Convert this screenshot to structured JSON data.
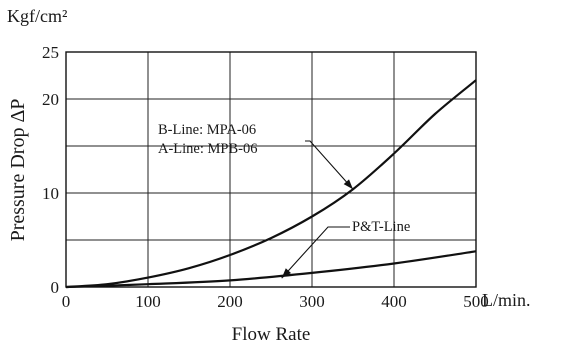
{
  "chart_data": {
    "type": "line",
    "title": "",
    "xlabel": "Flow Rate",
    "x_unit": "L/min.",
    "ylabel": "Pressure Drop  ΔP",
    "y_unit": "Kgf/cm²",
    "xlim": [
      0,
      500
    ],
    "ylim": [
      0,
      25
    ],
    "x_ticks": [
      0,
      100,
      200,
      300,
      400,
      500
    ],
    "y_ticks": [
      0,
      10,
      20,
      25
    ],
    "y_gridlines": [
      5,
      10,
      15,
      20
    ],
    "grid": true,
    "series": [
      {
        "name": "B-Line: MPA-06 / A-Line: MPB-06",
        "x": [
          0,
          50,
          100,
          150,
          200,
          250,
          300,
          350,
          400,
          450,
          500
        ],
        "y": [
          0,
          0.3,
          1.0,
          2.0,
          3.4,
          5.2,
          7.5,
          10.4,
          14.2,
          18.4,
          22.0
        ]
      },
      {
        "name": "P&T-Line",
        "x": [
          0,
          100,
          200,
          300,
          400,
          500
        ],
        "y": [
          0,
          0.3,
          0.7,
          1.5,
          2.5,
          3.8
        ]
      }
    ],
    "annotations": [
      "B-Line: MPA-06",
      "A-Line: MPB-06",
      "P&T-Line"
    ]
  }
}
